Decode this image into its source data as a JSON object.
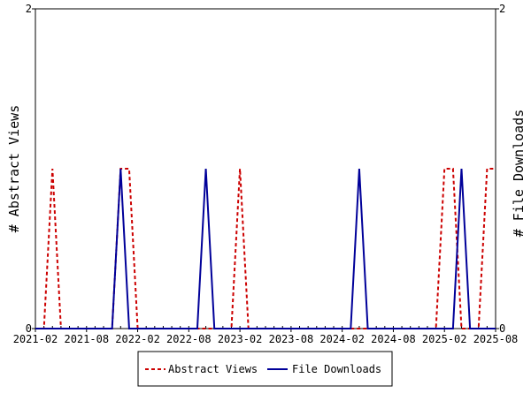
{
  "chart_data": {
    "type": "line",
    "x": [
      "2021-02",
      "2021-03",
      "2021-04",
      "2021-05",
      "2021-06",
      "2021-07",
      "2021-08",
      "2021-09",
      "2021-10",
      "2021-11",
      "2021-12",
      "2022-01",
      "2022-02",
      "2022-03",
      "2022-04",
      "2022-05",
      "2022-06",
      "2022-07",
      "2022-08",
      "2022-09",
      "2022-10",
      "2022-11",
      "2022-12",
      "2023-01",
      "2023-02",
      "2023-03",
      "2023-04",
      "2023-05",
      "2023-06",
      "2023-07",
      "2023-08",
      "2023-09",
      "2023-10",
      "2023-11",
      "2023-12",
      "2024-01",
      "2024-02",
      "2024-03",
      "2024-04",
      "2024-05",
      "2024-06",
      "2024-07",
      "2024-08",
      "2024-09",
      "2024-10",
      "2024-11",
      "2024-12",
      "2025-01",
      "2025-02",
      "2025-03",
      "2025-04",
      "2025-05",
      "2025-06",
      "2025-07",
      "2025-08"
    ],
    "x_tick_labels": [
      "2021-02",
      "2021-08",
      "2022-02",
      "2022-08",
      "2023-02",
      "2023-08",
      "2024-02",
      "2024-08",
      "2025-02",
      "2025-08"
    ],
    "series": [
      {
        "name": "Abstract Views",
        "color": "#cc0000",
        "style": "dashed",
        "axis": "left",
        "values": [
          0,
          0,
          1,
          0,
          0,
          0,
          0,
          0,
          0,
          0,
          1,
          1,
          0,
          0,
          0,
          0,
          0,
          0,
          0,
          0,
          0,
          0,
          0,
          0,
          1,
          0,
          0,
          0,
          0,
          0,
          0,
          0,
          0,
          0,
          0,
          0,
          0,
          0,
          0,
          0,
          0,
          0,
          0,
          0,
          0,
          0,
          0,
          0,
          1,
          1,
          0,
          0,
          0,
          1,
          1
        ]
      },
      {
        "name": "File Downloads",
        "color": "#000099",
        "style": "solid",
        "axis": "right",
        "values": [
          0,
          0,
          0,
          0,
          0,
          0,
          0,
          0,
          0,
          0,
          1,
          0,
          0,
          0,
          0,
          0,
          0,
          0,
          0,
          0,
          1,
          0,
          0,
          0,
          0,
          0,
          0,
          0,
          0,
          0,
          0,
          0,
          0,
          0,
          0,
          0,
          0,
          0,
          1,
          0,
          0,
          0,
          0,
          0,
          0,
          0,
          0,
          0,
          0,
          0,
          1,
          0,
          0,
          0,
          0
        ]
      }
    ],
    "ylabel_left": "# Abstract Views",
    "ylabel_right": "# File Downloads",
    "ylim_left": [
      0,
      2
    ],
    "ylim_right": [
      0,
      2
    ],
    "y_ticks": [
      "0",
      "2"
    ],
    "grid": false,
    "legend_position": "bottom-center"
  }
}
